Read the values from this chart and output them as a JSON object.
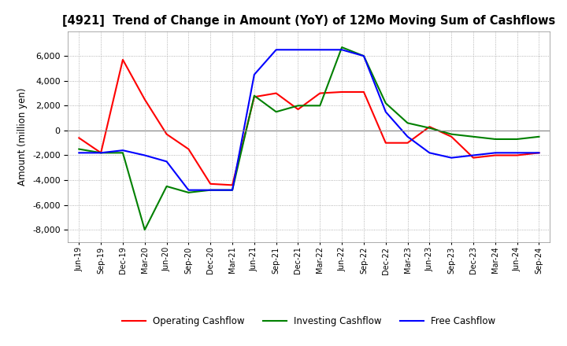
{
  "title": "[4921]  Trend of Change in Amount (YoY) of 12Mo Moving Sum of Cashflows",
  "ylabel": "Amount (million yen)",
  "x_labels": [
    "Jun-19",
    "Sep-19",
    "Dec-19",
    "Mar-20",
    "Jun-20",
    "Sep-20",
    "Dec-20",
    "Mar-21",
    "Jun-21",
    "Sep-21",
    "Dec-21",
    "Mar-22",
    "Jun-22",
    "Sep-22",
    "Dec-22",
    "Mar-23",
    "Jun-23",
    "Sep-23",
    "Dec-23",
    "Mar-24",
    "Jun-24",
    "Sep-24"
  ],
  "operating_cashflow": [
    -600,
    -1800,
    5700,
    2500,
    -300,
    -1500,
    -4300,
    -4400,
    2700,
    3000,
    1700,
    3000,
    3100,
    3100,
    -1000,
    -1000,
    300,
    -500,
    -2200,
    -2000,
    -2000,
    -1800
  ],
  "investing_cashflow": [
    -1500,
    -1800,
    -1800,
    -8000,
    -4500,
    -5000,
    -4800,
    -4800,
    2800,
    1500,
    2000,
    2000,
    6700,
    6000,
    2200,
    600,
    200,
    -300,
    -500,
    -700,
    -700,
    -500
  ],
  "free_cashflow": [
    -1800,
    -1800,
    -1600,
    -2000,
    -2500,
    -4800,
    -4800,
    -4800,
    4500,
    6500,
    6500,
    6500,
    6500,
    6000,
    1500,
    -500,
    -1800,
    -2200,
    -2000,
    -1800,
    -1800,
    -1800
  ],
  "ylim": [
    -9000,
    8000
  ],
  "yticks": [
    -8000,
    -6000,
    -4000,
    -2000,
    0,
    2000,
    4000,
    6000
  ],
  "colors": {
    "operating": "#ff0000",
    "investing": "#008000",
    "free": "#0000ff"
  },
  "legend": [
    "Operating Cashflow",
    "Investing Cashflow",
    "Free Cashflow"
  ],
  "background": "#ffffff"
}
